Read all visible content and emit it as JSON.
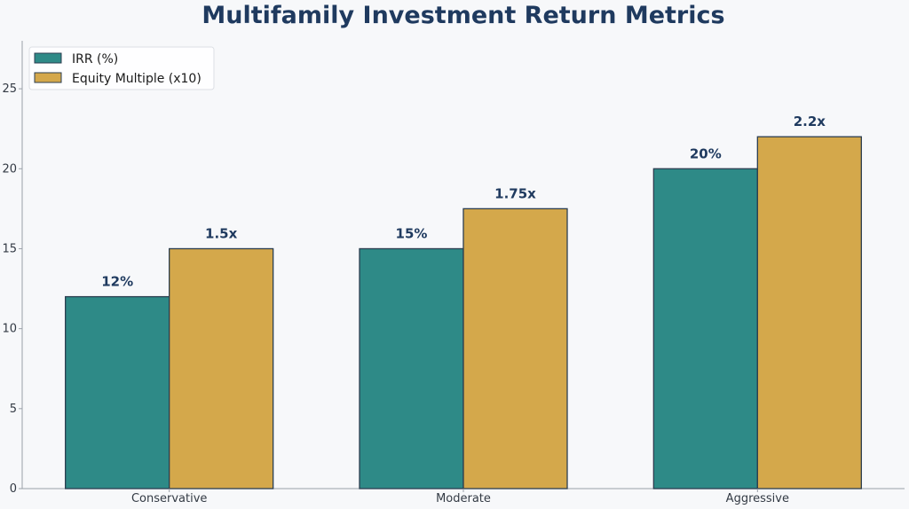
{
  "chart_data": {
    "type": "bar",
    "title": "Multifamily Investment Return Metrics",
    "xlabel": "",
    "ylabel": "",
    "categories": [
      "Conservative",
      "Moderate",
      "Aggressive"
    ],
    "series": [
      {
        "name": "IRR (%)",
        "values": [
          12,
          15,
          20
        ],
        "labels": [
          "12%",
          "15%",
          "20%"
        ],
        "color": "#2e8a87"
      },
      {
        "name": "Equity Multiple (x10)",
        "values": [
          15,
          17.5,
          22
        ],
        "labels": [
          "1.5x",
          "1.75x",
          "2.2x"
        ],
        "color": "#d4a84b"
      }
    ],
    "ylim": [
      0,
      28
    ],
    "yticks": [
      0,
      5,
      10,
      15,
      20,
      25
    ],
    "grid": false,
    "legend_position": "top-left"
  },
  "colors": {
    "title": "#1f3a5f",
    "bar_edge": "#2c3e50",
    "axis": "#9aa0a8",
    "background": "#f7f8fa"
  }
}
